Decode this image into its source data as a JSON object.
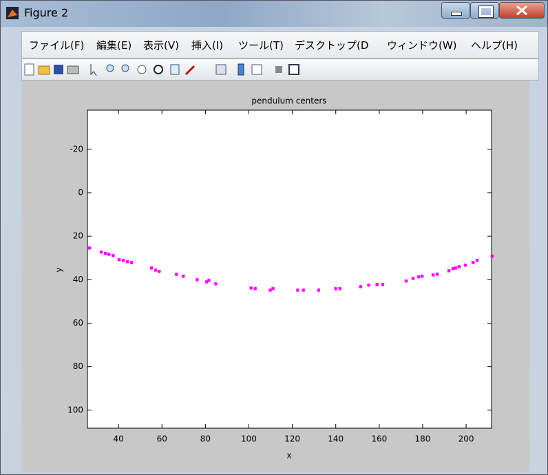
{
  "window": {
    "title": "Figure 2"
  },
  "menu": [
    "ファイル(F)",
    "編集(E)",
    "表示(V)",
    "挿入(I)",
    "ツール(T)",
    "デスクトップ(D",
    "ウィンドウ(W)",
    "ヘルプ(H)"
  ],
  "chart_data": {
    "type": "scatter",
    "title": "pendulum centers",
    "x_label": "x",
    "y_label": "y",
    "x": [
      26.7,
      32.1,
      34,
      35.6,
      37.5,
      40.3,
      42.2,
      44.1,
      46,
      55.2,
      57.1,
      58.7,
      66.7,
      69.8,
      76.2,
      80.6,
      81.6,
      84.8,
      101,
      102.9,
      109.8,
      111.1,
      122.5,
      125.1,
      132.1,
      140,
      141.9,
      151.4,
      155.2,
      159,
      161.6,
      172.4,
      175.6,
      178.1,
      179.7,
      184.8,
      186.7,
      192.1,
      194,
      195.2,
      196.8,
      199.7,
      203.2,
      205.1,
      212
    ],
    "series": [
      {
        "color": "#ff00ff",
        "values": [
          25.4,
          27.3,
          27.9,
          28.3,
          28.9,
          30.8,
          31.1,
          31.7,
          32.1,
          34.6,
          35.6,
          36.2,
          37.5,
          38.4,
          40,
          41,
          40.3,
          41.9,
          43.8,
          44.1,
          44.8,
          44.1,
          44.8,
          44.8,
          44.8,
          44.1,
          44.1,
          43.2,
          42.5,
          42.2,
          42.2,
          40.6,
          39.4,
          38.7,
          38.4,
          37.8,
          37.5,
          35.9,
          34.9,
          34.6,
          34,
          33.3,
          32.1,
          31.1,
          29.2
        ]
      }
    ],
    "xlim": [
      25.7,
      211.7
    ],
    "xticks": [
      40,
      60,
      80,
      100,
      120,
      140,
      160,
      180,
      200
    ],
    "ylim": [
      -38,
      108.3
    ],
    "yticks": [
      -20,
      0,
      20,
      40,
      60,
      80,
      100
    ],
    "y_direction": "reverse"
  }
}
